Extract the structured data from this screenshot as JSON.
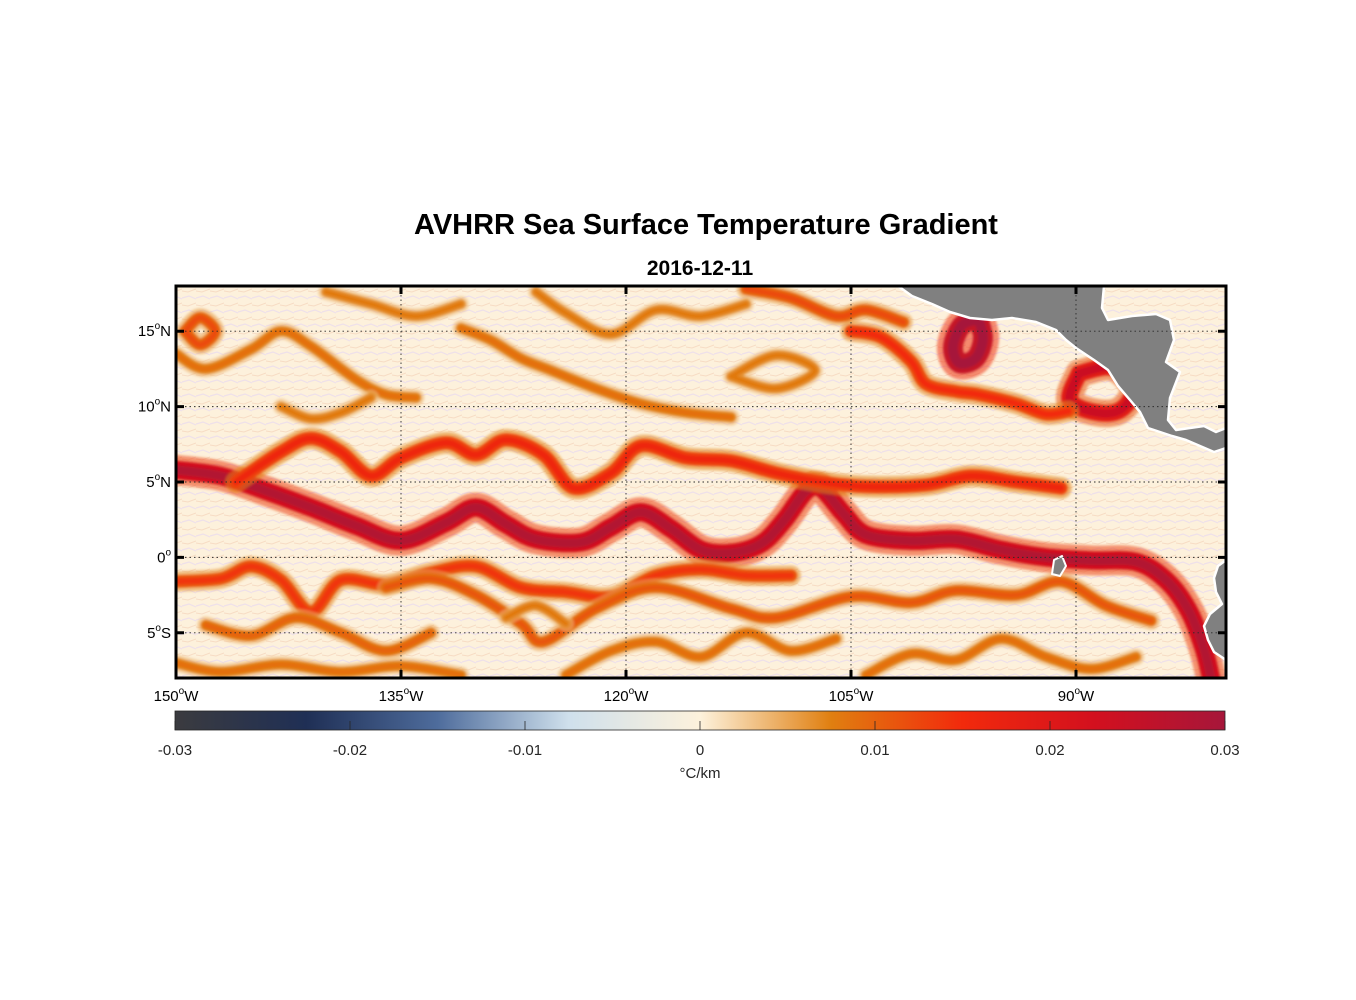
{
  "chart_data": {
    "type": "heatmap",
    "title": "AVHRR Sea Surface Temperature Gradient",
    "subtitle": "2016-12-11",
    "x_ticks": [
      {
        "value": -150,
        "deg": "150",
        "hemi": "W"
      },
      {
        "value": -135,
        "deg": "135",
        "hemi": "W"
      },
      {
        "value": -120,
        "deg": "120",
        "hemi": "W"
      },
      {
        "value": -105,
        "deg": "105",
        "hemi": "W"
      },
      {
        "value": -90,
        "deg": "90",
        "hemi": "W"
      }
    ],
    "y_ticks": [
      {
        "value": 15,
        "deg": "15",
        "hemi": "N"
      },
      {
        "value": 10,
        "deg": "10",
        "hemi": "N"
      },
      {
        "value": 5,
        "deg": "5",
        "hemi": "N"
      },
      {
        "value": 0,
        "deg": "0",
        "hemi": ""
      },
      {
        "value": -5,
        "deg": "5",
        "hemi": "S"
      }
    ],
    "lon_range": [
      -150,
      -80
    ],
    "lat_range": [
      -8,
      18
    ],
    "grid": true,
    "land_color": "#808080",
    "colorbar": {
      "label": "°C/km",
      "range": [
        -0.03,
        0.03
      ],
      "ticks": [
        {
          "value": -0.03,
          "label": "-0.03"
        },
        {
          "value": -0.02,
          "label": "-0.02"
        },
        {
          "value": -0.01,
          "label": "-0.01"
        },
        {
          "value": 0,
          "label": "0"
        },
        {
          "value": 0.01,
          "label": "0.01"
        },
        {
          "value": 0.02,
          "label": "0.02"
        },
        {
          "value": 0.03,
          "label": "0.03"
        }
      ],
      "colors": [
        "#3b3b3f",
        "#1f2f55",
        "#4e6c9c",
        "#cfe0ec",
        "#fdf2dc",
        "#e07f10",
        "#f22a0c",
        "#d3101e",
        "#a6163a"
      ]
    },
    "fronts": [
      {
        "name": "equatorial-front",
        "strength": 0.028,
        "points": [
          [
            -150,
            5.8
          ],
          [
            -147,
            5.4
          ],
          [
            -144,
            4.4
          ],
          [
            -141,
            3.3
          ],
          [
            -138,
            2.1
          ],
          [
            -135,
            1.1
          ],
          [
            -132,
            2.3
          ],
          [
            -130,
            3.3
          ],
          [
            -128,
            2.2
          ],
          [
            -126,
            1.2
          ],
          [
            -123,
            1.0
          ],
          [
            -121,
            2.0
          ],
          [
            -119,
            3.0
          ],
          [
            -117,
            1.9
          ],
          [
            -115,
            0.5
          ],
          [
            -113,
            0.3
          ],
          [
            -111,
            0.9
          ],
          [
            -109.5,
            2.4
          ],
          [
            -108,
            4.4
          ],
          [
            -107,
            4.6
          ],
          [
            -105.5,
            2.9
          ],
          [
            -104,
            1.5
          ],
          [
            -101,
            1.1
          ],
          [
            -98,
            1.2
          ],
          [
            -95,
            0.5
          ],
          [
            -92,
            0.0
          ],
          [
            -89,
            -0.2
          ],
          [
            -86,
            -0.3
          ],
          [
            -84,
            -1.5
          ],
          [
            -82.5,
            -3.5
          ],
          [
            -81.5,
            -6.0
          ],
          [
            -81,
            -8.0
          ]
        ]
      },
      {
        "name": "north-equatorial-front",
        "strength": 0.016,
        "points": [
          [
            -146,
            5.0
          ],
          [
            -143,
            7.0
          ],
          [
            -141,
            7.9
          ],
          [
            -139,
            7.0
          ],
          [
            -137,
            5.4
          ],
          [
            -135,
            6.6
          ],
          [
            -132,
            7.6
          ],
          [
            -130,
            6.8
          ],
          [
            -128,
            7.8
          ],
          [
            -125.5,
            6.8
          ],
          [
            -123.5,
            4.6
          ],
          [
            -121,
            5.6
          ],
          [
            -119,
            7.4
          ],
          [
            -116,
            6.6
          ],
          [
            -113,
            6.4
          ],
          [
            -110,
            5.6
          ],
          [
            -107,
            5.0
          ],
          [
            -104,
            4.7
          ],
          [
            -100,
            4.8
          ],
          [
            -97,
            5.4
          ],
          [
            -94,
            5.0
          ],
          [
            -91,
            4.6
          ]
        ]
      },
      {
        "name": "south-equatorial-front",
        "strength": 0.014,
        "points": [
          [
            -150,
            -1.6
          ],
          [
            -147,
            -1.4
          ],
          [
            -145,
            -0.6
          ],
          [
            -143,
            -1.5
          ],
          [
            -141,
            -3.6
          ],
          [
            -139,
            -1.5
          ],
          [
            -136,
            -1.8
          ],
          [
            -133,
            -1.0
          ],
          [
            -130,
            -0.6
          ],
          [
            -127,
            -2.0
          ],
          [
            -124,
            -2.3
          ],
          [
            -121,
            -2.6
          ],
          [
            -118,
            -1.2
          ],
          [
            -115,
            -0.8
          ],
          [
            -112,
            -1.2
          ],
          [
            -109,
            -1.2
          ]
        ]
      },
      {
        "name": "southern-front",
        "strength": 0.011,
        "points": [
          [
            -136,
            -2.0
          ],
          [
            -133,
            -1.4
          ],
          [
            -130,
            -2.5
          ],
          [
            -127,
            -4.4
          ],
          [
            -125.5,
            -5.6
          ],
          [
            -122,
            -3.4
          ],
          [
            -118,
            -2.0
          ],
          [
            -113,
            -3.4
          ],
          [
            -110,
            -4.0
          ],
          [
            -105,
            -2.6
          ],
          [
            -101,
            -3.0
          ],
          [
            -98,
            -2.2
          ],
          [
            -94,
            -2.5
          ],
          [
            -91,
            -1.6
          ],
          [
            -88,
            -3.2
          ],
          [
            -85,
            -4.2
          ]
        ]
      },
      {
        "name": "gulf-of-tehuantepec",
        "strength": 0.031,
        "points": [
          [
            -96.5,
            15.8
          ],
          [
            -96.2,
            14.5
          ],
          [
            -96.7,
            13.2
          ],
          [
            -97.8,
            12.9
          ],
          [
            -98.2,
            14.0
          ],
          [
            -97.6,
            15.4
          ],
          [
            -96.5,
            15.8
          ]
        ]
      },
      {
        "name": "papagayo-front",
        "strength": 0.024,
        "points": [
          [
            -89.8,
            12.2
          ],
          [
            -87.6,
            12.6
          ],
          [
            -86.2,
            11.2
          ],
          [
            -87.0,
            9.8
          ],
          [
            -88.6,
            9.6
          ],
          [
            -90.4,
            10.4
          ],
          [
            -89.8,
            12.2
          ]
        ]
      },
      {
        "name": "mexican-coastal-front",
        "strength": 0.015,
        "points": [
          [
            -105,
            15.0
          ],
          [
            -103,
            14.6
          ],
          [
            -101,
            13.0
          ],
          [
            -100,
            11.5
          ],
          [
            -98,
            11.0
          ],
          [
            -96.5,
            10.8
          ],
          [
            -94,
            10.2
          ],
          [
            -92,
            9.5
          ],
          [
            -90.5,
            9.7
          ]
        ]
      },
      {
        "name": "coastal-jet",
        "strength": 0.012,
        "points": [
          [
            -112,
            17.8
          ],
          [
            -109,
            17.2
          ],
          [
            -106,
            16.0
          ],
          [
            -104,
            16.4
          ],
          [
            -101.5,
            15.6
          ]
        ]
      },
      {
        "name": "northern-front-a",
        "strength": 0.009,
        "points": [
          [
            -150,
            13.5
          ],
          [
            -148,
            12.5
          ],
          [
            -145,
            13.8
          ],
          [
            -143,
            15.0
          ],
          [
            -141,
            14.0
          ],
          [
            -138,
            11.8
          ],
          [
            -136,
            10.8
          ],
          [
            -134,
            10.6
          ]
        ]
      },
      {
        "name": "northern-front-b",
        "strength": 0.009,
        "points": [
          [
            -131,
            15.2
          ],
          [
            -129,
            14.4
          ],
          [
            -127,
            13.2
          ],
          [
            -125,
            12.4
          ],
          [
            -122,
            11.2
          ],
          [
            -119,
            10.2
          ],
          [
            -116,
            9.6
          ],
          [
            -113,
            9.3
          ]
        ]
      },
      {
        "name": "northern-front-c",
        "strength": 0.008,
        "points": [
          [
            -143,
            10.0
          ],
          [
            -141,
            9.2
          ],
          [
            -139,
            9.6
          ],
          [
            -137,
            10.6
          ]
        ]
      },
      {
        "name": "northern-front-d",
        "strength": 0.008,
        "points": [
          [
            -126,
            17.6
          ],
          [
            -124,
            16.2
          ],
          [
            -121,
            14.8
          ],
          [
            -118,
            16.4
          ],
          [
            -115,
            16.0
          ],
          [
            -112,
            16.8
          ]
        ]
      },
      {
        "name": "northern-front-e",
        "strength": 0.008,
        "points": [
          [
            -140,
            17.6
          ],
          [
            -137,
            16.8
          ],
          [
            -134,
            16.0
          ],
          [
            -131,
            16.8
          ]
        ]
      },
      {
        "name": "eddy-ring",
        "strength": 0.012,
        "points": [
          [
            -149.4,
            15.0
          ],
          [
            -148.4,
            15.9
          ],
          [
            -147.4,
            15.0
          ],
          [
            -148.4,
            14.1
          ],
          [
            -149.4,
            15.0
          ]
        ]
      },
      {
        "name": "mid-ring",
        "strength": 0.008,
        "points": [
          [
            -113,
            12.0
          ],
          [
            -110,
            13.4
          ],
          [
            -107.4,
            12.4
          ],
          [
            -110,
            11.2
          ],
          [
            -113,
            12.0
          ]
        ]
      },
      {
        "name": "southern-filament-a",
        "strength": 0.01,
        "points": [
          [
            -148,
            -4.5
          ],
          [
            -145,
            -5.2
          ],
          [
            -142,
            -4.0
          ],
          [
            -139,
            -5.0
          ],
          [
            -136,
            -6.2
          ],
          [
            -133,
            -5.0
          ]
        ]
      },
      {
        "name": "southern-filament-b",
        "strength": 0.009,
        "points": [
          [
            -150,
            -7.0
          ],
          [
            -147,
            -7.6
          ],
          [
            -143,
            -7.1
          ],
          [
            -139,
            -7.6
          ],
          [
            -135,
            -7.2
          ],
          [
            -131,
            -7.8
          ]
        ]
      },
      {
        "name": "southern-filament-c",
        "strength": 0.009,
        "points": [
          [
            -124,
            -7.8
          ],
          [
            -121,
            -6.2
          ],
          [
            -118,
            -5.6
          ],
          [
            -115,
            -6.6
          ],
          [
            -112,
            -5.0
          ],
          [
            -109,
            -6.2
          ],
          [
            -106,
            -5.4
          ]
        ]
      },
      {
        "name": "southern-filament-d",
        "strength": 0.009,
        "points": [
          [
            -104,
            -7.8
          ],
          [
            -101,
            -6.4
          ],
          [
            -98,
            -6.8
          ],
          [
            -95,
            -5.4
          ],
          [
            -92,
            -6.6
          ],
          [
            -89,
            -7.4
          ],
          [
            -86,
            -6.6
          ]
        ]
      },
      {
        "name": "southern-filament-e",
        "strength": 0.008,
        "points": [
          [
            -128,
            -4.0
          ],
          [
            -126,
            -3.2
          ],
          [
            -124,
            -4.4
          ]
        ]
      }
    ]
  }
}
